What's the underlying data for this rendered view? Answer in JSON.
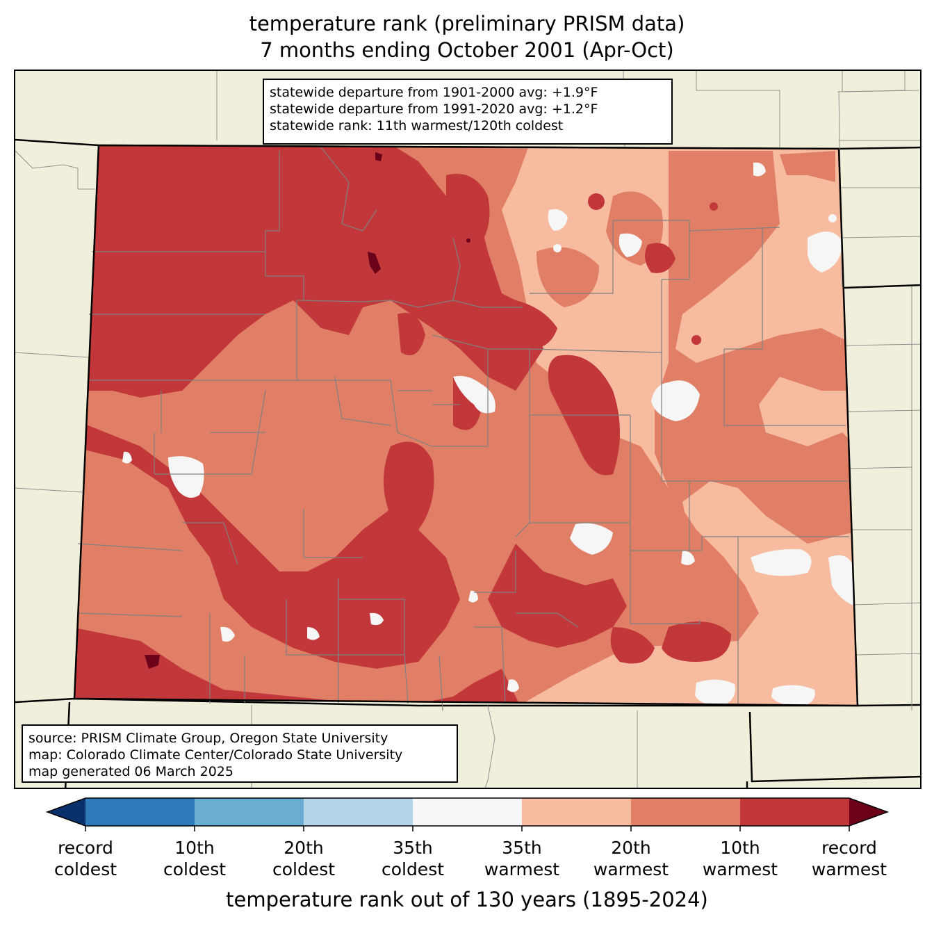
{
  "title": {
    "line1": "temperature rank (preliminary PRISM data)",
    "line2": "7 months ending October 2001 (Apr-Oct)"
  },
  "stats": {
    "line1": "statewide departure from 1901-2000 avg: +1.9°F",
    "line2": "statewide departure from 1991-2020 avg: +1.2°F",
    "line3": "statewide rank: 11th warmest/120th coldest"
  },
  "credits": {
    "line1": "source: PRISM Climate Group, Oregon State University",
    "line2": "map: Colorado Climate Center/Colorado State University",
    "line3": "map generated 06 March 2025"
  },
  "colorbar": {
    "label": "temperature rank out of 130 years (1895-2024)",
    "colors": [
      "#08306b",
      "#2e7ab8",
      "#6aadd3",
      "#b4d5e8",
      "#f6f6f6",
      "#f7bba0",
      "#e07f66",
      "#c2373a",
      "#6b0219"
    ],
    "ticks": [
      {
        "line1": "record",
        "line2": "coldest"
      },
      {
        "line1": "10th",
        "line2": "coldest"
      },
      {
        "line1": "20th",
        "line2": "coldest"
      },
      {
        "line1": "35th",
        "line2": "coldest"
      },
      {
        "line1": "35th",
        "line2": "warmest"
      },
      {
        "line1": "20th",
        "line2": "warmest"
      },
      {
        "line1": "10th",
        "line2": "warmest"
      },
      {
        "line1": "record",
        "line2": "warmest"
      }
    ]
  },
  "map_colors": {
    "land_outside": "#f0efdc",
    "rank_35_warmest": "#f7bba0",
    "rank_20_warmest": "#e07f66",
    "rank_10_warmest": "#c2373a",
    "rank_record_warmest": "#6b0219",
    "rank_near_normal": "#f6f6f6",
    "county_lines": "#808080"
  }
}
